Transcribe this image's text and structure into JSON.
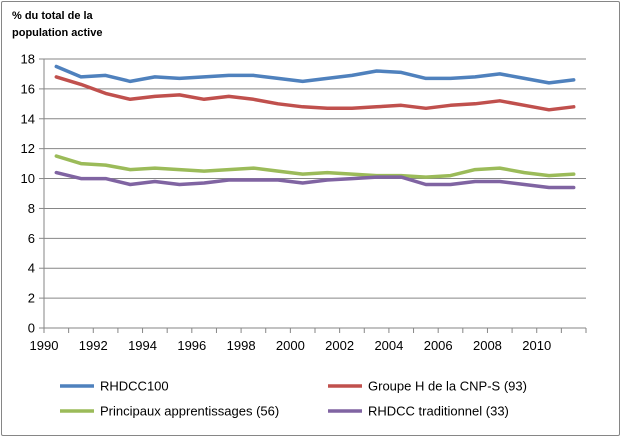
{
  "chart_data": {
    "type": "line",
    "title": "",
    "ylabel_lines": [
      "% du total de la",
      "population active"
    ],
    "xlabel": "",
    "ylim": [
      0,
      18
    ],
    "yticks": [
      0,
      2,
      4,
      6,
      8,
      10,
      12,
      14,
      16,
      18
    ],
    "xlim": [
      1990,
      2012
    ],
    "xticks": [
      1990,
      1992,
      1994,
      1996,
      1998,
      2000,
      2002,
      2004,
      2006,
      2008,
      2010
    ],
    "grid": "horizontal",
    "legend_position": "bottom",
    "x": [
      1990,
      1991,
      1992,
      1993,
      1994,
      1995,
      1996,
      1997,
      1998,
      1999,
      2000,
      2001,
      2002,
      2003,
      2004,
      2005,
      2006,
      2007,
      2008,
      2009,
      2010,
      2011
    ],
    "series": [
      {
        "name": "RHDCC100",
        "color": "#4F81BD",
        "values": [
          17.5,
          16.8,
          16.9,
          16.5,
          16.8,
          16.7,
          16.8,
          16.9,
          16.9,
          16.7,
          16.5,
          16.7,
          16.9,
          17.2,
          17.1,
          16.7,
          16.7,
          16.8,
          17.0,
          16.7,
          16.4,
          16.6
        ]
      },
      {
        "name": "Groupe H de la CNP-S (93)",
        "color": "#C0504D",
        "values": [
          16.8,
          16.3,
          15.7,
          15.3,
          15.5,
          15.6,
          15.3,
          15.5,
          15.3,
          15.0,
          14.8,
          14.7,
          14.7,
          14.8,
          14.9,
          14.7,
          14.9,
          15.0,
          15.2,
          14.9,
          14.6,
          14.8
        ]
      },
      {
        "name": "Principaux apprentissages (56)",
        "color": "#9BBB59",
        "values": [
          11.5,
          11.0,
          10.9,
          10.6,
          10.7,
          10.6,
          10.5,
          10.6,
          10.7,
          10.5,
          10.3,
          10.4,
          10.3,
          10.2,
          10.2,
          10.1,
          10.2,
          10.6,
          10.7,
          10.4,
          10.2,
          10.3
        ]
      },
      {
        "name": "RHDCC traditionnel (33)",
        "color": "#8064A2",
        "values": [
          10.4,
          10.0,
          10.0,
          9.6,
          9.8,
          9.6,
          9.7,
          9.9,
          9.9,
          9.9,
          9.7,
          9.9,
          10.0,
          10.1,
          10.1,
          9.6,
          9.6,
          9.8,
          9.8,
          9.6,
          9.4,
          9.4
        ]
      }
    ]
  }
}
